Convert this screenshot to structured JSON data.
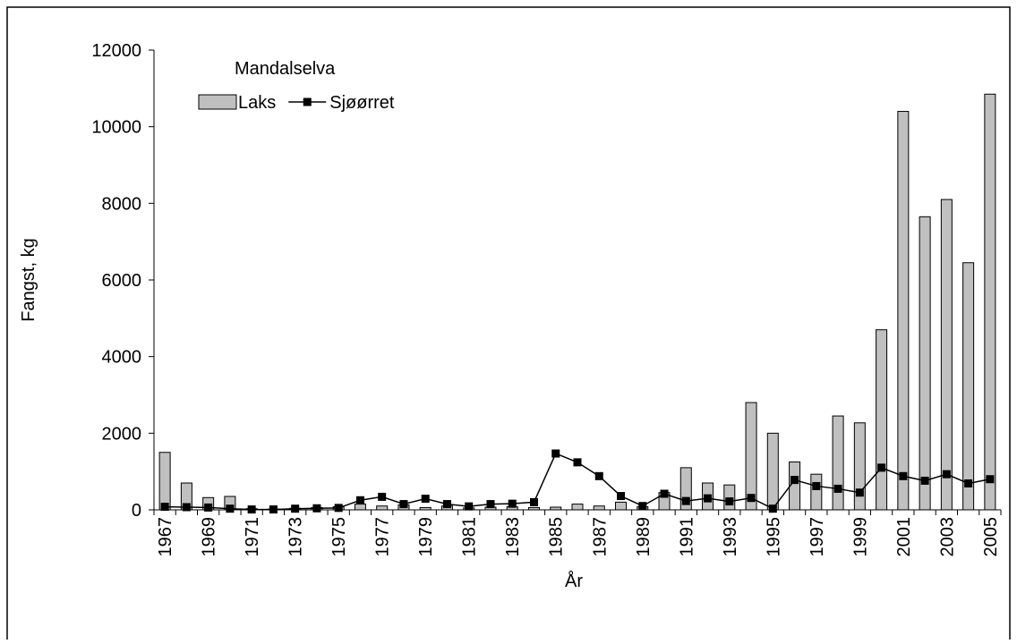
{
  "chart_data": {
    "type": "bar",
    "legend_title": "Mandalselva",
    "y_label": "Fangst, kg",
    "x_label": "År",
    "categories": [
      "1967",
      null,
      "1969",
      null,
      "1971",
      null,
      "1973",
      null,
      "1975",
      null,
      "1977",
      null,
      "1979",
      null,
      "1981",
      null,
      "1983",
      null,
      "1985",
      null,
      "1987",
      null,
      "1989",
      null,
      "1991",
      null,
      "1993",
      null,
      "1995",
      null,
      "1997",
      null,
      "1999",
      null,
      "2001",
      null,
      "2003",
      null,
      "2005"
    ],
    "series": [
      {
        "name": "Laks",
        "type": "bar",
        "color": "#c0c0c0",
        "values": [
          1500,
          700,
          320,
          350,
          30,
          20,
          40,
          60,
          80,
          150,
          100,
          130,
          60,
          100,
          50,
          70,
          80,
          60,
          70,
          150,
          100,
          200,
          80,
          450,
          1100,
          700,
          650,
          2800,
          2000,
          1250,
          930,
          2450,
          2270,
          4700,
          10400,
          7650,
          8100,
          6450,
          10850
        ]
      },
      {
        "name": "Sjøørret",
        "type": "line",
        "color": "#000000",
        "values": [
          80,
          70,
          60,
          30,
          10,
          10,
          30,
          40,
          50,
          250,
          340,
          150,
          290,
          150,
          90,
          150,
          160,
          200,
          1470,
          1240,
          880,
          360,
          100,
          420,
          230,
          300,
          220,
          310,
          30,
          780,
          620,
          550,
          450,
          1100,
          880,
          760,
          930,
          690,
          800
        ]
      }
    ],
    "ylim": [
      0,
      12000
    ],
    "yticks": [
      0,
      2000,
      4000,
      6000,
      8000,
      10000,
      12000
    ],
    "grid": false
  }
}
